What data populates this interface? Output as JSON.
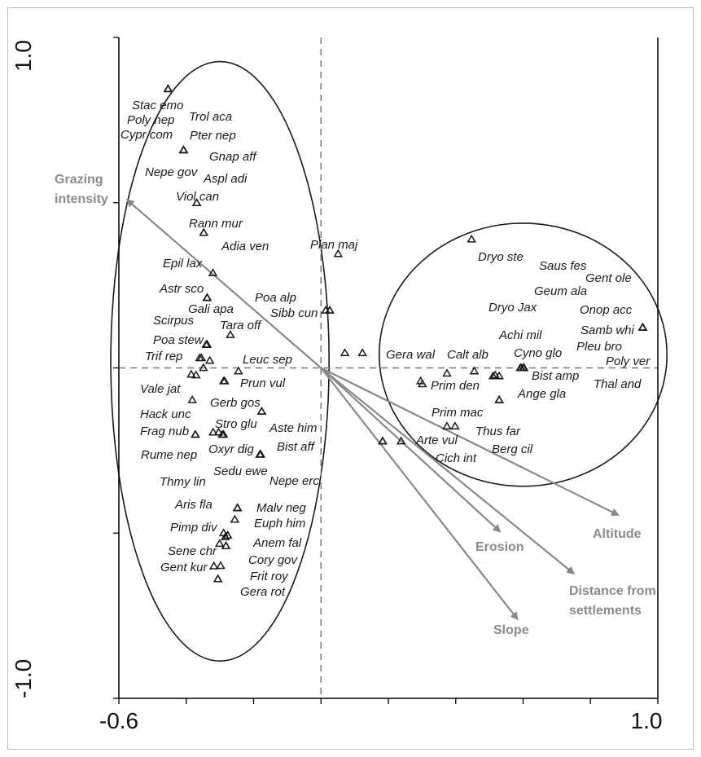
{
  "chart_data": {
    "type": "scatter",
    "title": "",
    "xlabel": "",
    "ylabel": "",
    "xlim": [
      -0.6,
      1.0
    ],
    "ylim": [
      -1.0,
      1.0
    ],
    "x_tick_labels": [
      "-0.6",
      "1.0"
    ],
    "y_tick_labels": [
      "1.0",
      "-1.0"
    ],
    "colors": {
      "species": "#1a1a1a",
      "vectors": "#888888",
      "axes": "#000000",
      "zero_lines": "#777777"
    },
    "species": [
      {
        "label": "Stac emo",
        "x": -0.454,
        "y": 0.844
      },
      {
        "label": "Poly nep",
        "x": -0.454,
        "y": 0.844
      },
      {
        "label": "Cypr com",
        "x": -0.454,
        "y": 0.844
      },
      {
        "label": "Trol aca",
        "x": -0.408,
        "y": 0.659
      },
      {
        "label": "Pter nep",
        "x": -0.408,
        "y": 0.659
      },
      {
        "label": "Gnap aff",
        "x": -0.408,
        "y": 0.659
      },
      {
        "label": "Nepe gov",
        "x": -0.408,
        "y": 0.659
      },
      {
        "label": "Aspl adi",
        "x": -0.369,
        "y": 0.499
      },
      {
        "label": "Viol can",
        "x": -0.369,
        "y": 0.499
      },
      {
        "label": "Rann mur",
        "x": -0.348,
        "y": 0.409
      },
      {
        "label": "Adia ven",
        "x": -0.348,
        "y": 0.409
      },
      {
        "label": "Plan maj",
        "x": 0.051,
        "y": 0.345
      },
      {
        "label": "Epil lax",
        "x": -0.321,
        "y": 0.287
      },
      {
        "label": "Astr sco",
        "x": -0.338,
        "y": 0.212
      },
      {
        "label": "Gali apa",
        "x": -0.338,
        "y": 0.212
      },
      {
        "label": "Poa alp",
        "x": 0.026,
        "y": 0.174
      },
      {
        "label": "Sibb cun",
        "x": 0.026,
        "y": 0.174
      },
      {
        "label": "Scirpus",
        "x": -0.338,
        "y": 0.212
      },
      {
        "label": "Tara off",
        "x": -0.269,
        "y": 0.1
      },
      {
        "label": "Poa stew",
        "x": -0.338,
        "y": 0.071
      },
      {
        "label": "Trif rep",
        "x": -0.36,
        "y": 0.03
      },
      {
        "label": "Leuc sep",
        "x": -0.245,
        "y": -0.01
      },
      {
        "label": "Gera wal",
        "x": 0.123,
        "y": 0.045
      },
      {
        "label": "Calt alb",
        "x": 0.455,
        "y": -0.01
      },
      {
        "label": "Dryo ste",
        "x": 0.447,
        "y": 0.389
      },
      {
        "label": "Saus fes",
        "x": 0.602,
        "y": 0.0
      },
      {
        "label": "Gent ole",
        "x": 0.602,
        "y": 0.0
      },
      {
        "label": "Geum ala",
        "x": 0.602,
        "y": 0.0
      },
      {
        "label": "Dryo Jax",
        "x": 0.602,
        "y": 0.0
      },
      {
        "label": "Onop acc",
        "x": 0.955,
        "y": 0.122
      },
      {
        "label": "Achi mil",
        "x": 0.602,
        "y": 0.0
      },
      {
        "label": "Samb whi",
        "x": 0.955,
        "y": 0.122
      },
      {
        "label": "Cyno glo",
        "x": 0.594,
        "y": 0.0
      },
      {
        "label": "Pleu bro",
        "x": 0.955,
        "y": 0.122
      },
      {
        "label": "Poly ver",
        "x": 0.955,
        "y": 0.122
      },
      {
        "label": "Bist amp",
        "x": 0.529,
        "y": -0.025
      },
      {
        "label": "Thal and",
        "x": 0.955,
        "y": 0.122
      },
      {
        "label": "Prim den",
        "x": 0.301,
        "y": -0.049
      },
      {
        "label": "Ange gla",
        "x": 0.529,
        "y": -0.097
      },
      {
        "label": "Prim mac",
        "x": 0.374,
        "y": -0.017
      },
      {
        "label": "Thus far",
        "x": 0.398,
        "y": -0.177
      },
      {
        "label": "Berg cil",
        "x": 0.529,
        "y": -0.097
      },
      {
        "label": "Arte vul",
        "x": 0.183,
        "y": -0.222
      },
      {
        "label": "Cich int",
        "x": 0.183,
        "y": -0.222
      },
      {
        "label": "Vale jat",
        "x": -0.385,
        "y": -0.02
      },
      {
        "label": "Prun vul",
        "x": -0.289,
        "y": -0.04
      },
      {
        "label": "Hack unc",
        "x": -0.382,
        "y": -0.097
      },
      {
        "label": "Gerb gos",
        "x": -0.176,
        "y": -0.132
      },
      {
        "label": "Frag nub",
        "x": -0.373,
        "y": -0.202
      },
      {
        "label": "Stro glu",
        "x": -0.304,
        "y": -0.195
      },
      {
        "label": "Aste him",
        "x": -0.176,
        "y": -0.132
      },
      {
        "label": "Rume nep",
        "x": -0.373,
        "y": -0.202
      },
      {
        "label": "Oxyr dig",
        "x": -0.289,
        "y": -0.202
      },
      {
        "label": "Bist aff",
        "x": -0.181,
        "y": -0.262
      },
      {
        "label": "Sedu ewe",
        "x": -0.181,
        "y": -0.262
      },
      {
        "label": "Nepe erc",
        "x": -0.181,
        "y": -0.262
      },
      {
        "label": "Thmy lin",
        "x": -0.248,
        "y": -0.424
      },
      {
        "label": "Aris fla",
        "x": -0.248,
        "y": -0.424
      },
      {
        "label": "Malv neg",
        "x": -0.248,
        "y": -0.424
      },
      {
        "label": "Euph him",
        "x": -0.256,
        "y": -0.459
      },
      {
        "label": "Pimp div",
        "x": -0.277,
        "y": -0.507
      },
      {
        "label": "Anem fal",
        "x": -0.277,
        "y": -0.507
      },
      {
        "label": "Sene chr",
        "x": -0.282,
        "y": -0.539
      },
      {
        "label": "Cory gov",
        "x": -0.282,
        "y": -0.539
      },
      {
        "label": "Frit roy",
        "x": -0.298,
        "y": -0.599
      },
      {
        "label": "Gent kur",
        "x": -0.306,
        "y": -0.639
      },
      {
        "label": "Gera rot",
        "x": -0.306,
        "y": -0.639
      }
    ],
    "extra_points": [
      {
        "x": 0.014,
        "y": 0.174
      },
      {
        "x": -0.341,
        "y": 0.07
      },
      {
        "x": -0.355,
        "y": 0.03
      },
      {
        "x": -0.33,
        "y": 0.022
      },
      {
        "x": -0.349,
        "y": 0.0
      },
      {
        "x": -0.371,
        "y": -0.022
      },
      {
        "x": -0.286,
        "y": -0.04
      },
      {
        "x": 0.296,
        "y": -0.04
      },
      {
        "x": 0.517,
        "y": -0.022
      },
      {
        "x": 0.511,
        "y": -0.025
      },
      {
        "x": 0.592,
        "y": 0.0
      },
      {
        "x": 0.6,
        "y": 0.0
      },
      {
        "x": 0.071,
        "y": 0.045
      },
      {
        "x": 0.374,
        "y": -0.177
      },
      {
        "x": 0.183,
        "y": -0.222
      },
      {
        "x": 0.238,
        "y": -0.222
      },
      {
        "x": -0.32,
        "y": -0.195
      },
      {
        "x": -0.293,
        "y": -0.202
      },
      {
        "x": -0.179,
        "y": -0.262
      },
      {
        "x": -0.289,
        "y": -0.5
      },
      {
        "x": -0.284,
        "y": -0.512
      },
      {
        "x": -0.301,
        "y": -0.532
      },
      {
        "x": -0.318,
        "y": -0.6
      }
    ],
    "vectors": [
      {
        "name": "Grazing intensity",
        "x": -0.575,
        "y": 0.508
      },
      {
        "name": "Altitude",
        "x": 0.882,
        "y": -0.445
      },
      {
        "name": "Erosion",
        "x": 0.531,
        "y": -0.495
      },
      {
        "name": "Distance from settlements",
        "x": 0.75,
        "y": -0.622
      },
      {
        "name": "Slope",
        "x": 0.583,
        "y": -0.76
      }
    ],
    "vector_labels": [
      "Grazing",
      "intensity",
      "Altitude",
      "Erosion",
      "Distance from",
      "settlements",
      "Slope"
    ],
    "groups": [
      {
        "name": "left-group",
        "cx": -0.3,
        "cy": 0.02,
        "rx": 0.324,
        "ry": 0.907
      },
      {
        "name": "right-group",
        "cx": 0.6,
        "cy": 0.04,
        "rx": 0.427,
        "ry": 0.398
      }
    ]
  }
}
